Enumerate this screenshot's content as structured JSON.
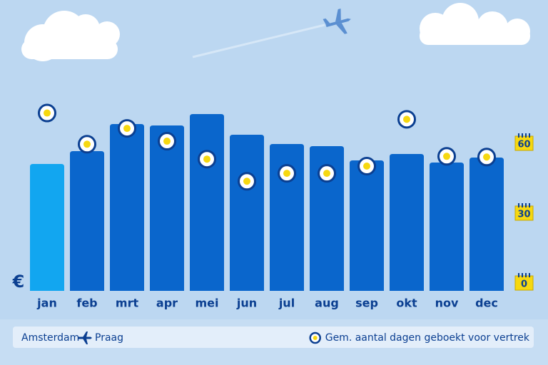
{
  "chart_data": {
    "type": "bar",
    "y_label": "€",
    "categories": [
      "jan",
      "feb",
      "mrt",
      "apr",
      "mei",
      "jun",
      "jul",
      "aug",
      "sep",
      "okt",
      "nov",
      "dec"
    ],
    "series": [
      {
        "name": "Amsterdam → Praag",
        "values": [
          178,
          196,
          234,
          232,
          248,
          219,
          206,
          203,
          183,
          192,
          180,
          187
        ],
        "colors": [
          "#12a6f0",
          "#0a66cc",
          "#0a66cc",
          "#0a66cc",
          "#0a66cc",
          "#0a66cc",
          "#0a66cc",
          "#0a66cc",
          "#0a66cc",
          "#0a66cc",
          "#0a66cc",
          "#0a66cc"
        ]
      },
      {
        "name": "Gem. aantal dagen geboekt voor vertrek",
        "type": "dot",
        "axis": "y2",
        "color": "#0b3f91",
        "values": [
          73,
          59.6,
          66.4,
          60.9,
          53.2,
          43.7,
          47.1,
          47.1,
          50.2,
          70.3,
          54.4,
          54.1
        ]
      }
    ],
    "route": {
      "from": "Amsterdam",
      "to": "Praag"
    },
    "ylim": [
      0,
      300
    ],
    "y2lim": [
      0,
      60
    ],
    "y2ticks": [
      0,
      30,
      60
    ]
  }
}
